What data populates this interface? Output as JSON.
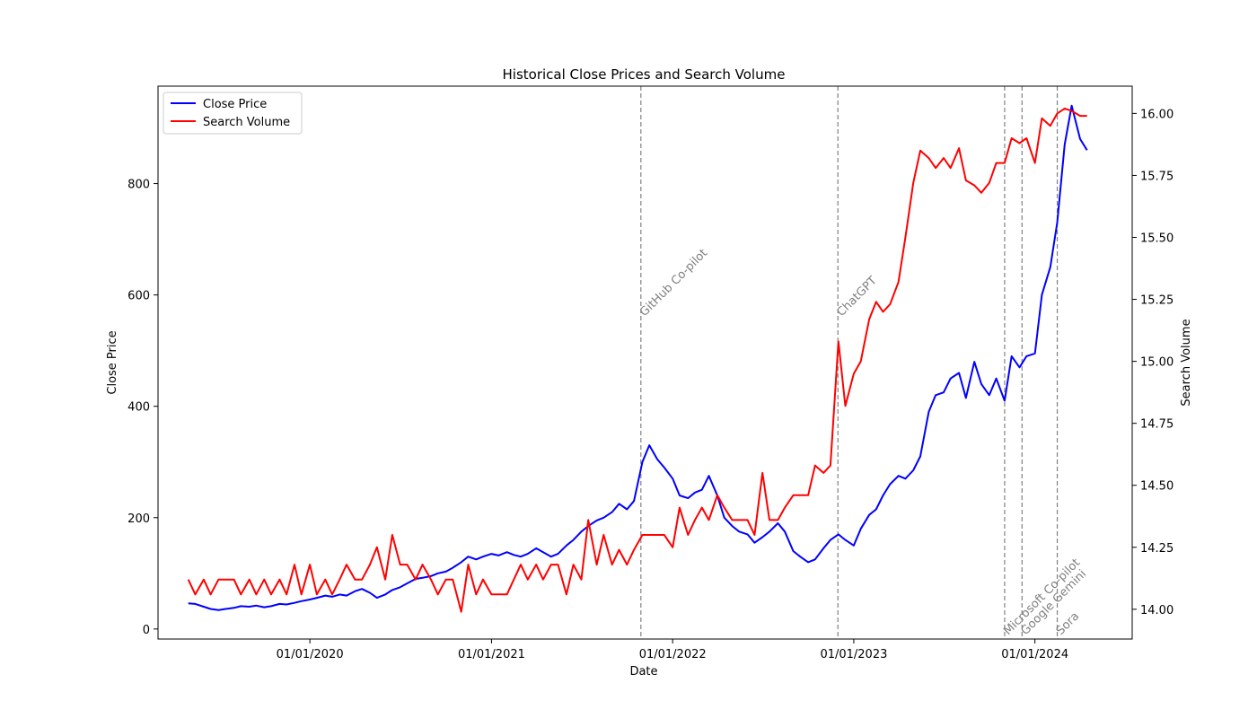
{
  "chart_data": {
    "type": "line",
    "title": "Historical Close Prices and Search Volume",
    "xlabel": "Date",
    "ylabel_left": "Close Price",
    "ylabel_right": "Search Volume",
    "x_ticks": [
      "01/01/2020",
      "01/01/2021",
      "01/01/2022",
      "01/01/2023",
      "01/01/2024"
    ],
    "y_left_ticks": [
      "0",
      "200",
      "400",
      "600",
      "800"
    ],
    "y_right_ticks": [
      "14.00",
      "14.25",
      "14.50",
      "14.75",
      "15.00",
      "15.25",
      "15.50",
      "15.75",
      "16.00"
    ],
    "ylim_left": [
      -18,
      975
    ],
    "ylim_right": [
      13.88,
      16.11
    ],
    "xlim": [
      "2019-03-01",
      "2024-07-15"
    ],
    "grid": false,
    "legend": "top-left",
    "events": [
      {
        "date": "2021-10-29",
        "label": "GitHub Co-pilot"
      },
      {
        "date": "2022-11-30",
        "label": "ChatGPT"
      },
      {
        "date": "2023-11-01",
        "label": "Microsoft Co-pilot"
      },
      {
        "date": "2023-12-06",
        "label": "Google Gemini"
      },
      {
        "date": "2024-02-15",
        "label": "Sora"
      }
    ],
    "series": [
      {
        "name": "Close Price",
        "axis": "left",
        "color": "#0000ff",
        "points": [
          [
            "2019-05-01",
            46
          ],
          [
            "2019-05-15",
            45
          ],
          [
            "2019-06-01",
            40
          ],
          [
            "2019-06-15",
            36
          ],
          [
            "2019-07-01",
            34
          ],
          [
            "2019-07-15",
            36
          ],
          [
            "2019-08-01",
            38
          ],
          [
            "2019-08-15",
            41
          ],
          [
            "2019-09-01",
            40
          ],
          [
            "2019-09-15",
            42
          ],
          [
            "2019-10-01",
            39
          ],
          [
            "2019-10-15",
            41
          ],
          [
            "2019-11-01",
            45
          ],
          [
            "2019-11-15",
            44
          ],
          [
            "2019-12-01",
            47
          ],
          [
            "2019-12-15",
            50
          ],
          [
            "2020-01-01",
            53
          ],
          [
            "2020-01-15",
            56
          ],
          [
            "2020-02-01",
            60
          ],
          [
            "2020-02-15",
            58
          ],
          [
            "2020-03-01",
            62
          ],
          [
            "2020-03-15",
            60
          ],
          [
            "2020-04-01",
            68
          ],
          [
            "2020-04-15",
            72
          ],
          [
            "2020-05-01",
            65
          ],
          [
            "2020-05-15",
            56
          ],
          [
            "2020-06-01",
            62
          ],
          [
            "2020-06-15",
            70
          ],
          [
            "2020-07-01",
            75
          ],
          [
            "2020-07-15",
            82
          ],
          [
            "2020-08-01",
            90
          ],
          [
            "2020-08-15",
            92
          ],
          [
            "2020-09-01",
            95
          ],
          [
            "2020-09-15",
            100
          ],
          [
            "2020-10-01",
            103
          ],
          [
            "2020-10-15",
            110
          ],
          [
            "2020-11-01",
            120
          ],
          [
            "2020-11-15",
            130
          ],
          [
            "2020-12-01",
            125
          ],
          [
            "2020-12-15",
            130
          ],
          [
            "2021-01-01",
            135
          ],
          [
            "2021-01-15",
            132
          ],
          [
            "2021-02-01",
            138
          ],
          [
            "2021-02-15",
            133
          ],
          [
            "2021-03-01",
            130
          ],
          [
            "2021-03-15",
            135
          ],
          [
            "2021-04-01",
            145
          ],
          [
            "2021-04-15",
            138
          ],
          [
            "2021-05-01",
            130
          ],
          [
            "2021-05-15",
            135
          ],
          [
            "2021-06-01",
            150
          ],
          [
            "2021-06-15",
            160
          ],
          [
            "2021-07-01",
            175
          ],
          [
            "2021-07-15",
            185
          ],
          [
            "2021-08-01",
            195
          ],
          [
            "2021-08-15",
            200
          ],
          [
            "2021-09-01",
            210
          ],
          [
            "2021-09-15",
            225
          ],
          [
            "2021-10-01",
            215
          ],
          [
            "2021-10-15",
            230
          ],
          [
            "2021-11-01",
            300
          ],
          [
            "2021-11-15",
            330
          ],
          [
            "2021-12-01",
            305
          ],
          [
            "2021-12-15",
            290
          ],
          [
            "2022-01-01",
            270
          ],
          [
            "2022-01-15",
            240
          ],
          [
            "2022-02-01",
            235
          ],
          [
            "2022-02-15",
            245
          ],
          [
            "2022-03-01",
            250
          ],
          [
            "2022-03-15",
            275
          ],
          [
            "2022-04-01",
            240
          ],
          [
            "2022-04-15",
            200
          ],
          [
            "2022-05-01",
            185
          ],
          [
            "2022-05-15",
            175
          ],
          [
            "2022-06-01",
            170
          ],
          [
            "2022-06-15",
            155
          ],
          [
            "2022-07-01",
            165
          ],
          [
            "2022-07-15",
            175
          ],
          [
            "2022-08-01",
            190
          ],
          [
            "2022-08-15",
            175
          ],
          [
            "2022-09-01",
            140
          ],
          [
            "2022-09-15",
            130
          ],
          [
            "2022-10-01",
            120
          ],
          [
            "2022-10-15",
            125
          ],
          [
            "2022-11-01",
            145
          ],
          [
            "2022-11-15",
            160
          ],
          [
            "2022-12-01",
            170
          ],
          [
            "2022-12-15",
            160
          ],
          [
            "2023-01-01",
            150
          ],
          [
            "2023-01-15",
            180
          ],
          [
            "2023-02-01",
            205
          ],
          [
            "2023-02-15",
            215
          ],
          [
            "2023-03-01",
            240
          ],
          [
            "2023-03-15",
            260
          ],
          [
            "2023-04-01",
            275
          ],
          [
            "2023-04-15",
            270
          ],
          [
            "2023-05-01",
            285
          ],
          [
            "2023-05-15",
            310
          ],
          [
            "2023-06-01",
            390
          ],
          [
            "2023-06-15",
            420
          ],
          [
            "2023-07-01",
            425
          ],
          [
            "2023-07-15",
            450
          ],
          [
            "2023-08-01",
            460
          ],
          [
            "2023-08-15",
            415
          ],
          [
            "2023-09-01",
            480
          ],
          [
            "2023-09-15",
            440
          ],
          [
            "2023-10-01",
            420
          ],
          [
            "2023-10-15",
            450
          ],
          [
            "2023-11-01",
            410
          ],
          [
            "2023-11-15",
            490
          ],
          [
            "2023-12-01",
            470
          ],
          [
            "2023-12-15",
            490
          ],
          [
            "2024-01-01",
            495
          ],
          [
            "2024-01-15",
            600
          ],
          [
            "2024-02-01",
            650
          ],
          [
            "2024-02-15",
            730
          ],
          [
            "2024-03-01",
            870
          ],
          [
            "2024-03-15",
            940
          ],
          [
            "2024-04-01",
            880
          ],
          [
            "2024-04-15",
            860
          ]
        ]
      },
      {
        "name": "Search Volume",
        "axis": "right",
        "color": "#ff0000",
        "points": [
          [
            "2019-05-01",
            14.12
          ],
          [
            "2019-05-15",
            14.06
          ],
          [
            "2019-06-01",
            14.12
          ],
          [
            "2019-06-15",
            14.06
          ],
          [
            "2019-07-01",
            14.12
          ],
          [
            "2019-07-15",
            14.12
          ],
          [
            "2019-08-01",
            14.12
          ],
          [
            "2019-08-15",
            14.06
          ],
          [
            "2019-09-01",
            14.12
          ],
          [
            "2019-09-15",
            14.06
          ],
          [
            "2019-10-01",
            14.12
          ],
          [
            "2019-10-15",
            14.06
          ],
          [
            "2019-11-01",
            14.12
          ],
          [
            "2019-11-15",
            14.06
          ],
          [
            "2019-12-01",
            14.18
          ],
          [
            "2019-12-15",
            14.06
          ],
          [
            "2020-01-01",
            14.18
          ],
          [
            "2020-01-15",
            14.06
          ],
          [
            "2020-02-01",
            14.12
          ],
          [
            "2020-02-15",
            14.06
          ],
          [
            "2020-03-01",
            14.12
          ],
          [
            "2020-03-15",
            14.18
          ],
          [
            "2020-04-01",
            14.12
          ],
          [
            "2020-04-15",
            14.12
          ],
          [
            "2020-05-01",
            14.18
          ],
          [
            "2020-05-15",
            14.25
          ],
          [
            "2020-06-01",
            14.12
          ],
          [
            "2020-06-15",
            14.3
          ],
          [
            "2020-07-01",
            14.18
          ],
          [
            "2020-07-15",
            14.18
          ],
          [
            "2020-08-01",
            14.12
          ],
          [
            "2020-08-15",
            14.18
          ],
          [
            "2020-09-01",
            14.12
          ],
          [
            "2020-09-15",
            14.06
          ],
          [
            "2020-10-01",
            14.12
          ],
          [
            "2020-10-15",
            14.12
          ],
          [
            "2020-11-01",
            13.99
          ],
          [
            "2020-11-15",
            14.18
          ],
          [
            "2020-12-01",
            14.06
          ],
          [
            "2020-12-15",
            14.12
          ],
          [
            "2021-01-01",
            14.06
          ],
          [
            "2021-01-15",
            14.06
          ],
          [
            "2021-02-01",
            14.06
          ],
          [
            "2021-02-15",
            14.12
          ],
          [
            "2021-03-01",
            14.18
          ],
          [
            "2021-03-15",
            14.12
          ],
          [
            "2021-04-01",
            14.18
          ],
          [
            "2021-04-15",
            14.12
          ],
          [
            "2021-05-01",
            14.18
          ],
          [
            "2021-05-15",
            14.18
          ],
          [
            "2021-06-01",
            14.06
          ],
          [
            "2021-06-15",
            14.18
          ],
          [
            "2021-07-01",
            14.12
          ],
          [
            "2021-07-15",
            14.36
          ],
          [
            "2021-08-01",
            14.18
          ],
          [
            "2021-08-15",
            14.3
          ],
          [
            "2021-09-01",
            14.18
          ],
          [
            "2021-09-15",
            14.24
          ],
          [
            "2021-10-01",
            14.18
          ],
          [
            "2021-10-15",
            14.24
          ],
          [
            "2021-11-01",
            14.3
          ],
          [
            "2021-11-15",
            14.3
          ],
          [
            "2021-12-01",
            14.3
          ],
          [
            "2021-12-15",
            14.3
          ],
          [
            "2022-01-01",
            14.25
          ],
          [
            "2022-01-15",
            14.41
          ],
          [
            "2022-02-01",
            14.3
          ],
          [
            "2022-02-15",
            14.36
          ],
          [
            "2022-03-01",
            14.41
          ],
          [
            "2022-03-15",
            14.36
          ],
          [
            "2022-04-01",
            14.46
          ],
          [
            "2022-04-15",
            14.41
          ],
          [
            "2022-05-01",
            14.36
          ],
          [
            "2022-05-15",
            14.36
          ],
          [
            "2022-06-01",
            14.36
          ],
          [
            "2022-06-15",
            14.3
          ],
          [
            "2022-07-01",
            14.55
          ],
          [
            "2022-07-15",
            14.36
          ],
          [
            "2022-08-01",
            14.36
          ],
          [
            "2022-08-15",
            14.41
          ],
          [
            "2022-09-01",
            14.46
          ],
          [
            "2022-09-15",
            14.46
          ],
          [
            "2022-10-01",
            14.46
          ],
          [
            "2022-10-15",
            14.58
          ],
          [
            "2022-11-01",
            14.55
          ],
          [
            "2022-11-15",
            14.58
          ],
          [
            "2022-12-01",
            15.08
          ],
          [
            "2022-12-15",
            14.82
          ],
          [
            "2023-01-01",
            14.95
          ],
          [
            "2023-01-15",
            15.0
          ],
          [
            "2023-02-01",
            15.17
          ],
          [
            "2023-02-15",
            15.24
          ],
          [
            "2023-03-01",
            15.2
          ],
          [
            "2023-03-15",
            15.23
          ],
          [
            "2023-04-01",
            15.32
          ],
          [
            "2023-04-15",
            15.5
          ],
          [
            "2023-05-01",
            15.72
          ],
          [
            "2023-05-15",
            15.85
          ],
          [
            "2023-06-01",
            15.82
          ],
          [
            "2023-06-15",
            15.78
          ],
          [
            "2023-07-01",
            15.82
          ],
          [
            "2023-07-15",
            15.78
          ],
          [
            "2023-08-01",
            15.86
          ],
          [
            "2023-08-15",
            15.73
          ],
          [
            "2023-09-01",
            15.71
          ],
          [
            "2023-09-15",
            15.68
          ],
          [
            "2023-10-01",
            15.72
          ],
          [
            "2023-10-15",
            15.8
          ],
          [
            "2023-11-01",
            15.8
          ],
          [
            "2023-11-15",
            15.9
          ],
          [
            "2023-12-01",
            15.88
          ],
          [
            "2023-12-15",
            15.9
          ],
          [
            "2024-01-01",
            15.8
          ],
          [
            "2024-01-15",
            15.98
          ],
          [
            "2024-02-01",
            15.95
          ],
          [
            "2024-02-15",
            16.0
          ],
          [
            "2024-03-01",
            16.02
          ],
          [
            "2024-03-15",
            16.01
          ],
          [
            "2024-04-01",
            15.99
          ],
          [
            "2024-04-15",
            15.99
          ]
        ]
      }
    ]
  }
}
